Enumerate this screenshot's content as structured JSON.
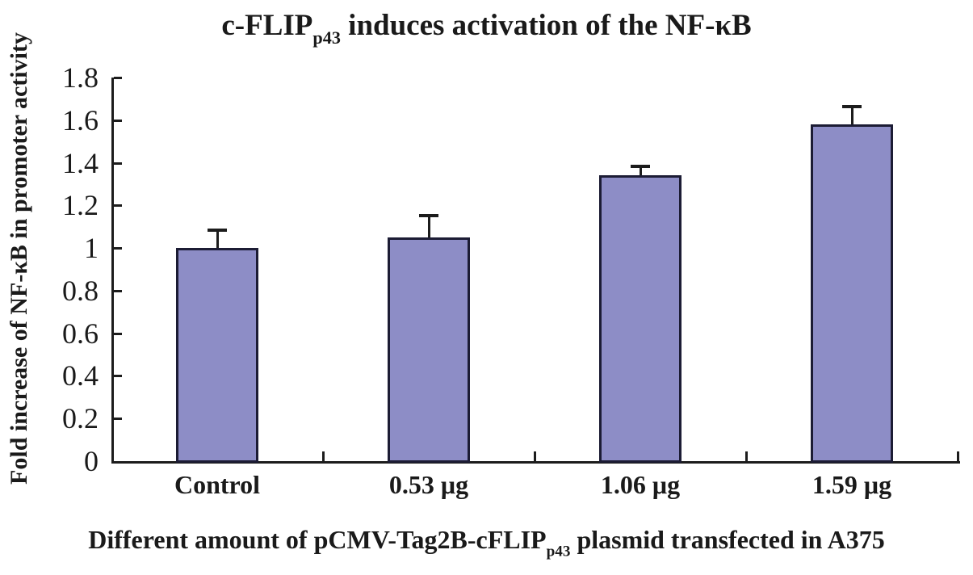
{
  "chart_data": {
    "type": "bar",
    "title": "c-FLIP(p43) induces activation of the NF-κB",
    "title_parts": {
      "prefix": "c-FLIP",
      "subscript": "p43",
      "suffix": " induces activation of the NF-κB"
    },
    "ylabel": "Fold increase of NF-κB in promoter activity",
    "xlabel": "Different amount of pCMV-Tag2B-cFLIP(p43) plasmid transfected in A375",
    "xlabel_parts": {
      "prefix": "Different amount of pCMV-Tag2B-cFLIP",
      "subscript": "p43",
      "suffix": " plasmid transfected in A375"
    },
    "categories": [
      "Control",
      "0.53 μg",
      "1.06 μg",
      "1.59 μg"
    ],
    "values": [
      1.0,
      1.05,
      1.34,
      1.58
    ],
    "errors_plus": [
      0.08,
      0.1,
      0.04,
      0.08
    ],
    "ylim": [
      0,
      1.8
    ],
    "ytick_step": 0.2,
    "ytick_labels": [
      "0",
      "0.2",
      "0.4",
      "0.6",
      "0.8",
      "1",
      "1.2",
      "1.4",
      "1.6",
      "1.8"
    ],
    "grid": false,
    "legend": null,
    "colors": {
      "bar_fill": "#8d8dc6",
      "bar_border": "#1c1c34",
      "axis": "#1c1c1c",
      "text": "#1a1a1a"
    }
  }
}
